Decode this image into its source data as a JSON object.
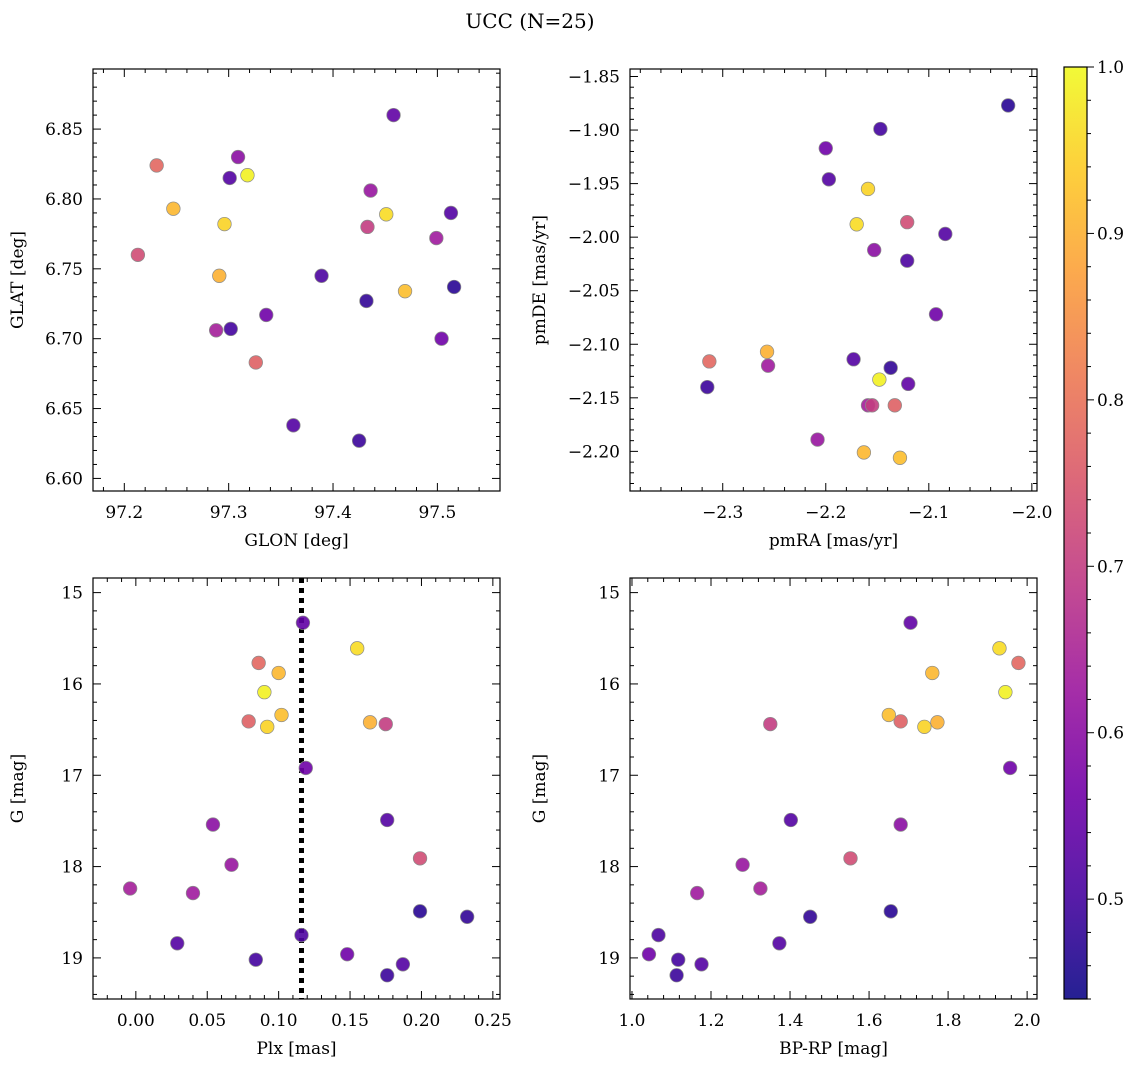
{
  "suptitle": "UCC (N=25)",
  "colorbar": {
    "vmin": 0.44,
    "vmax": 1.0,
    "ticks": [
      "0.5",
      "0.6",
      "0.7",
      "0.8",
      "0.9",
      "1.0"
    ],
    "tick_values": [
      0.5,
      0.6,
      0.7,
      0.8,
      0.9,
      1.0
    ],
    "colormap": "plasma",
    "colors": [
      "#0d0887",
      "#46039f",
      "#7201a8",
      "#9c179e",
      "#bd3786",
      "#d8576b",
      "#ed7953",
      "#fb9f3a",
      "#fdca26",
      "#f0f921"
    ]
  },
  "chart_data": [
    {
      "type": "scatter",
      "name": "glon-glat",
      "xlabel": "GLON [deg]",
      "ylabel": "GLAT [deg]",
      "xlim": [
        97.17,
        97.56
      ],
      "ylim": [
        6.591,
        6.893
      ],
      "y_inverted": false,
      "xticks": [
        97.2,
        97.3,
        97.4,
        97.5
      ],
      "xtick_labels": [
        "97.2",
        "97.3",
        "97.4",
        "97.5"
      ],
      "yticks": [
        6.6,
        6.65,
        6.7,
        6.75,
        6.8,
        6.85
      ],
      "ytick_labels": [
        "6.60",
        "6.65",
        "6.70",
        "6.75",
        "6.80",
        "6.85"
      ],
      "grid": false
    },
    {
      "type": "scatter",
      "name": "pmra-pmde",
      "xlabel": "pmRA [mas/yr]",
      "ylabel": "pmDE [mas/yr]",
      "xlim": [
        -2.39,
        -1.995
      ],
      "ylim": [
        -2.237,
        -1.843
      ],
      "y_inverted": false,
      "xticks": [
        -2.3,
        -2.2,
        -2.1,
        -2.0
      ],
      "xtick_labels": [
        "−2.3",
        "−2.2",
        "−2.1",
        "−2.0"
      ],
      "yticks": [
        -2.2,
        -2.15,
        -2.1,
        -2.05,
        -2.0,
        -1.95,
        -1.9,
        -1.85
      ],
      "ytick_labels": [
        "−2.20",
        "−2.15",
        "−2.10",
        "−2.05",
        "−2.00",
        "−1.95",
        "−1.90",
        "−1.85"
      ],
      "grid": false
    },
    {
      "type": "scatter",
      "name": "plx-g",
      "xlabel": "Plx [mas]",
      "ylabel": "G [mag]",
      "xlim": [
        -0.03,
        0.255
      ],
      "ylim": [
        14.84,
        19.45
      ],
      "y_inverted": true,
      "xticks": [
        0.0,
        0.05,
        0.1,
        0.15,
        0.2,
        0.25
      ],
      "xtick_labels": [
        "0.00",
        "0.05",
        "0.10",
        "0.15",
        "0.20",
        "0.25"
      ],
      "yticks": [
        15,
        16,
        17,
        18,
        19
      ],
      "ytick_labels": [
        "15",
        "16",
        "17",
        "18",
        "19"
      ],
      "vline": 0.116,
      "grid": false
    },
    {
      "type": "scatter",
      "name": "bprp-g",
      "xlabel": "BP-RP [mag]",
      "ylabel": "G [mag]",
      "xlim": [
        0.995,
        2.025
      ],
      "ylim": [
        14.84,
        19.45
      ],
      "y_inverted": true,
      "xticks": [
        1.0,
        1.2,
        1.4,
        1.6,
        1.8,
        2.0
      ],
      "xtick_labels": [
        "1.0",
        "1.2",
        "1.4",
        "1.6",
        "1.8",
        "2.0"
      ],
      "yticks": [
        15,
        16,
        17,
        18,
        19
      ],
      "ytick_labels": [
        "15",
        "16",
        "17",
        "18",
        "19"
      ],
      "grid": false
    }
  ],
  "stars": [
    {
      "glon": 97.458,
      "glat": 6.86,
      "pmra": -2.12,
      "pmde": -2.137,
      "plx": 0.117,
      "g": 15.33,
      "bprp": 1.705,
      "prob": 0.54
    },
    {
      "glon": 97.451,
      "glat": 6.789,
      "pmra": -2.17,
      "pmde": -1.988,
      "plx": 0.155,
      "g": 15.61,
      "bprp": 1.93,
      "prob": 0.96
    },
    {
      "glon": 97.231,
      "glat": 6.824,
      "pmra": -2.313,
      "pmde": -2.116,
      "plx": 0.086,
      "g": 15.77,
      "bprp": 1.978,
      "prob": 0.78
    },
    {
      "glon": 97.247,
      "glat": 6.793,
      "pmra": -2.163,
      "pmde": -2.201,
      "plx": 0.1,
      "g": 15.88,
      "bprp": 1.76,
      "prob": 0.91
    },
    {
      "glon": 97.318,
      "glat": 6.817,
      "pmra": -2.148,
      "pmde": -2.133,
      "plx": 0.09,
      "g": 16.09,
      "bprp": 1.945,
      "prob": 0.99
    },
    {
      "glon": 97.469,
      "glat": 6.734,
      "pmra": -2.128,
      "pmde": -2.206,
      "plx": 0.102,
      "g": 16.34,
      "bprp": 1.65,
      "prob": 0.92
    },
    {
      "glon": 97.326,
      "glat": 6.683,
      "pmra": -2.133,
      "pmde": -2.157,
      "plx": 0.079,
      "g": 16.41,
      "bprp": 1.68,
      "prob": 0.77
    },
    {
      "glon": 97.291,
      "glat": 6.745,
      "pmra": -2.257,
      "pmde": -2.107,
      "plx": 0.164,
      "g": 16.42,
      "bprp": 1.773,
      "prob": 0.9
    },
    {
      "glon": 97.433,
      "glat": 6.78,
      "pmra": -2.155,
      "pmde": -2.157,
      "plx": 0.175,
      "g": 16.44,
      "bprp": 1.35,
      "prob": 0.7
    },
    {
      "glon": 97.296,
      "glat": 6.782,
      "pmra": -2.159,
      "pmde": -1.955,
      "plx": 0.092,
      "g": 16.47,
      "bprp": 1.74,
      "prob": 0.95
    },
    {
      "glon": 97.504,
      "glat": 6.7,
      "pmra": -2.093,
      "pmde": -2.072,
      "plx": 0.119,
      "g": 16.92,
      "bprp": 1.957,
      "prob": 0.56
    },
    {
      "glon": 97.513,
      "glat": 6.79,
      "pmra": -2.197,
      "pmde": -1.946,
      "plx": 0.176,
      "g": 17.49,
      "bprp": 1.402,
      "prob": 0.52
    },
    {
      "glon": 97.309,
      "glat": 6.83,
      "pmra": -2.153,
      "pmde": -2.012,
      "plx": 0.054,
      "g": 17.54,
      "bprp": 1.68,
      "prob": 0.6
    },
    {
      "glon": 97.213,
      "glat": 6.76,
      "pmra": -2.121,
      "pmde": -1.986,
      "plx": 0.199,
      "g": 17.91,
      "bprp": 1.553,
      "prob": 0.73
    },
    {
      "glon": 97.436,
      "glat": 6.806,
      "pmra": -2.208,
      "pmde": -2.189,
      "plx": 0.067,
      "g": 17.98,
      "bprp": 1.28,
      "prob": 0.62
    },
    {
      "glon": 97.288,
      "glat": 6.706,
      "pmra": -2.159,
      "pmde": -2.157,
      "plx": -0.004,
      "g": 18.24,
      "bprp": 1.325,
      "prob": 0.64
    },
    {
      "glon": 97.499,
      "glat": 6.772,
      "pmra": -2.256,
      "pmde": -2.12,
      "plx": 0.04,
      "g": 18.29,
      "bprp": 1.165,
      "prob": 0.63
    },
    {
      "glon": 97.516,
      "glat": 6.737,
      "pmra": -2.023,
      "pmde": -1.877,
      "plx": 0.199,
      "g": 18.49,
      "bprp": 1.655,
      "prob": 0.47
    },
    {
      "glon": 97.432,
      "glat": 6.727,
      "pmra": -2.137,
      "pmde": -2.122,
      "plx": 0.232,
      "g": 18.55,
      "bprp": 1.451,
      "prob": 0.48
    },
    {
      "glon": 97.389,
      "glat": 6.745,
      "pmra": -2.121,
      "pmde": -2.022,
      "plx": 0.116,
      "g": 18.75,
      "bprp": 1.067,
      "prob": 0.51
    },
    {
      "glon": 97.301,
      "glat": 6.815,
      "pmra": -2.173,
      "pmde": -2.114,
      "plx": 0.029,
      "g": 18.84,
      "bprp": 1.373,
      "prob": 0.52
    },
    {
      "glon": 97.336,
      "glat": 6.717,
      "pmra": -2.2,
      "pmde": -1.917,
      "plx": 0.148,
      "g": 18.96,
      "bprp": 1.043,
      "prob": 0.56
    },
    {
      "glon": 97.302,
      "glat": 6.707,
      "pmra": -2.147,
      "pmde": -1.899,
      "plx": 0.084,
      "g": 19.02,
      "bprp": 1.117,
      "prob": 0.5
    },
    {
      "glon": 97.362,
      "glat": 6.638,
      "pmra": -2.084,
      "pmde": -1.997,
      "plx": 0.187,
      "g": 19.07,
      "bprp": 1.176,
      "prob": 0.52
    },
    {
      "glon": 97.425,
      "glat": 6.627,
      "pmra": -2.315,
      "pmde": -2.14,
      "plx": 0.176,
      "g": 19.19,
      "bprp": 1.113,
      "prob": 0.49
    }
  ]
}
